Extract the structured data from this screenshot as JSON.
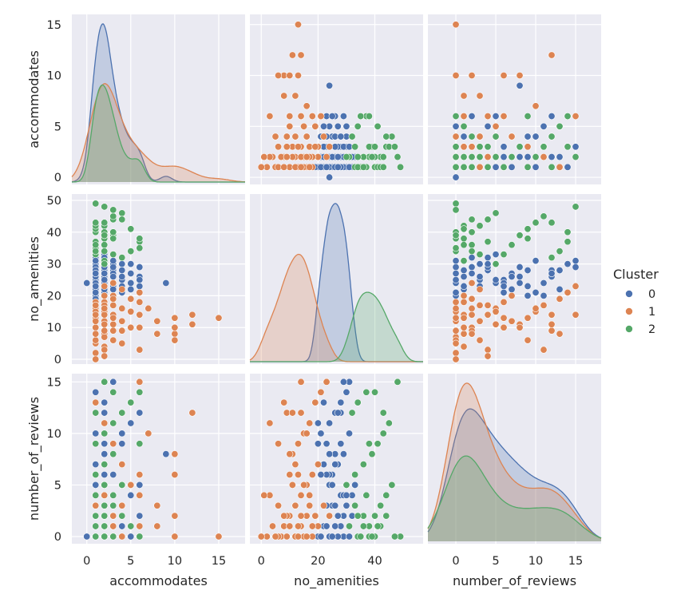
{
  "chart_data": {
    "type": "scatter",
    "variables": [
      "accommodates",
      "no_amenities",
      "number_of_reviews"
    ],
    "diagonal": "kde",
    "grid": true,
    "legend": {
      "title": "Cluster",
      "placement": "right",
      "entries": [
        "0",
        "1",
        "2"
      ]
    },
    "colors": {
      "0": "#4c72b0",
      "1": "#dd8452",
      "2": "#55a868",
      "background": "#eaeaf2",
      "grid": "#ffffff"
    },
    "x_ticks": {
      "accommodates": [
        0,
        5,
        10,
        15
      ],
      "no_amenities": [
        0,
        20,
        40
      ],
      "number_of_reviews": [
        0,
        5,
        10,
        15
      ]
    },
    "y_ticks": {
      "accommodates": [
        0,
        5,
        10,
        15
      ],
      "no_amenities": [
        0,
        10,
        20,
        30,
        40,
        50
      ],
      "number_of_reviews": [
        0,
        5,
        10,
        15
      ]
    },
    "x_range": {
      "accommodates": [
        -1.7,
        18
      ],
      "no_amenities": [
        -4,
        57
      ],
      "number_of_reviews": [
        -3.5,
        18.2
      ]
    },
    "y_range": {
      "accommodates": [
        -0.7,
        16
      ],
      "no_amenities": [
        -1.5,
        52
      ],
      "number_of_reviews": [
        -0.7,
        15.8
      ]
    },
    "points": {
      "0": [
        [
          1,
          20,
          0
        ],
        [
          1,
          22,
          1
        ],
        [
          2,
          24,
          2
        ],
        [
          2,
          26,
          3
        ],
        [
          3,
          28,
          4
        ],
        [
          4,
          30,
          5
        ],
        [
          2,
          25,
          6
        ],
        [
          1,
          27,
          7
        ],
        [
          2,
          29,
          8
        ],
        [
          3,
          23,
          9
        ],
        [
          4,
          21,
          10
        ],
        [
          5,
          24,
          11
        ],
        [
          6,
          26,
          12
        ],
        [
          2,
          28,
          13
        ],
        [
          1,
          30,
          14
        ],
        [
          2,
          31,
          15
        ],
        [
          1,
          19,
          2
        ],
        [
          2,
          21,
          0
        ],
        [
          3,
          22,
          1
        ],
        [
          4,
          25,
          3
        ],
        [
          5,
          27,
          0
        ],
        [
          6,
          29,
          2
        ],
        [
          1,
          32,
          4
        ],
        [
          2,
          33,
          5
        ],
        [
          3,
          24,
          6
        ],
        [
          4,
          26,
          7
        ],
        [
          2,
          28,
          1
        ],
        [
          1,
          29,
          0
        ],
        [
          2,
          30,
          3
        ],
        [
          3,
          27,
          2
        ],
        [
          1,
          25,
          0
        ],
        [
          2,
          23,
          1
        ],
        [
          1,
          24,
          5
        ],
        [
          2,
          26,
          8
        ],
        [
          3,
          20,
          11
        ],
        [
          1,
          28,
          12
        ],
        [
          2,
          27,
          0
        ],
        [
          1,
          26,
          1
        ],
        [
          2,
          29,
          4
        ],
        [
          4,
          28,
          9
        ],
        [
          9,
          24,
          8
        ],
        [
          0,
          24,
          0
        ],
        [
          5,
          22,
          13
        ],
        [
          3,
          30,
          14
        ],
        [
          1,
          31,
          10
        ],
        [
          2,
          22,
          7
        ],
        [
          6,
          23,
          6
        ],
        [
          3,
          26,
          3
        ],
        [
          1,
          27,
          2
        ],
        [
          2,
          25,
          0
        ],
        [
          4,
          23,
          1
        ],
        [
          5,
          30,
          4
        ],
        [
          3,
          29,
          15
        ],
        [
          2,
          20,
          9
        ],
        [
          1,
          21,
          6
        ],
        [
          6,
          25,
          5
        ],
        [
          2,
          32,
          2
        ],
        [
          3,
          31,
          0
        ],
        [
          1,
          23,
          3
        ],
        [
          2,
          27,
          12
        ]
      ],
      "1": [
        [
          1,
          5,
          0
        ],
        [
          2,
          8,
          1
        ],
        [
          1,
          10,
          2
        ],
        [
          2,
          12,
          3
        ],
        [
          3,
          14,
          4
        ],
        [
          4,
          16,
          5
        ],
        [
          1,
          18,
          6
        ],
        [
          2,
          20,
          7
        ],
        [
          3,
          11,
          8
        ],
        [
          1,
          13,
          9
        ],
        [
          2,
          15,
          10
        ],
        [
          3,
          17,
          11
        ],
        [
          4,
          9,
          12
        ],
        [
          5,
          19,
          13
        ],
        [
          6,
          21,
          14
        ],
        [
          2,
          23,
          15
        ],
        [
          1,
          2,
          0
        ],
        [
          2,
          4,
          1
        ],
        [
          1,
          6,
          3
        ],
        [
          2,
          7,
          0
        ],
        [
          3,
          9,
          2
        ],
        [
          1,
          12,
          0
        ],
        [
          2,
          14,
          1
        ],
        [
          1,
          16,
          2
        ],
        [
          2,
          18,
          0
        ],
        [
          3,
          20,
          1
        ],
        [
          4,
          22,
          3
        ],
        [
          1,
          15,
          0
        ],
        [
          2,
          17,
          4
        ],
        [
          6,
          10,
          6
        ],
        [
          6,
          14,
          15
        ],
        [
          7,
          16,
          10
        ],
        [
          8,
          12,
          3
        ],
        [
          8,
          8,
          1
        ],
        [
          10,
          13,
          6
        ],
        [
          10,
          8,
          2
        ],
        [
          10,
          6,
          0
        ],
        [
          12,
          14,
          12
        ],
        [
          12,
          11,
          12
        ],
        [
          15,
          13,
          0
        ],
        [
          10,
          10,
          8
        ],
        [
          5,
          15,
          5
        ],
        [
          4,
          12,
          7
        ],
        [
          3,
          6,
          9
        ],
        [
          2,
          3,
          11
        ],
        [
          1,
          8,
          13
        ],
        [
          6,
          3,
          4
        ],
        [
          5,
          10,
          1
        ],
        [
          4,
          5,
          0
        ],
        [
          3,
          19,
          2
        ],
        [
          2,
          11,
          5
        ],
        [
          1,
          17,
          3
        ],
        [
          2,
          9,
          0
        ],
        [
          3,
          13,
          1
        ],
        [
          1,
          14,
          2
        ],
        [
          2,
          16,
          0
        ],
        [
          6,
          18,
          1
        ],
        [
          3,
          24,
          2
        ],
        [
          1,
          0,
          0
        ],
        [
          2,
          1,
          4
        ]
      ],
      "2": [
        [
          1,
          35,
          0
        ],
        [
          2,
          38,
          1
        ],
        [
          1,
          40,
          2
        ],
        [
          2,
          42,
          3
        ],
        [
          3,
          44,
          4
        ],
        [
          4,
          46,
          5
        ],
        [
          1,
          33,
          6
        ],
        [
          2,
          36,
          7
        ],
        [
          3,
          39,
          8
        ],
        [
          1,
          41,
          9
        ],
        [
          2,
          43,
          10
        ],
        [
          3,
          45,
          11
        ],
        [
          4,
          32,
          12
        ],
        [
          5,
          34,
          13
        ],
        [
          6,
          37,
          14
        ],
        [
          2,
          48,
          15
        ],
        [
          1,
          49,
          0
        ],
        [
          2,
          31,
          1
        ],
        [
          1,
          34,
          0
        ],
        [
          2,
          36,
          2
        ],
        [
          3,
          38,
          0
        ],
        [
          1,
          42,
          1
        ],
        [
          2,
          40,
          0
        ],
        [
          3,
          33,
          3
        ],
        [
          6,
          35,
          0
        ],
        [
          5,
          41,
          1
        ],
        [
          4,
          44,
          2
        ],
        [
          3,
          47,
          0
        ],
        [
          2,
          30,
          5
        ],
        [
          1,
          37,
          4
        ],
        [
          6,
          38,
          9
        ],
        [
          3,
          40,
          14
        ],
        [
          1,
          43,
          12
        ],
        [
          2,
          39,
          0
        ],
        [
          1,
          36,
          1
        ],
        [
          2,
          34,
          2
        ]
      ]
    }
  }
}
